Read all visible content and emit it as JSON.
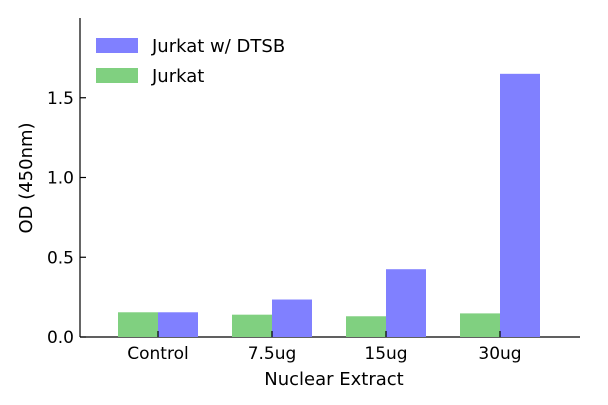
{
  "chart_data": {
    "type": "bar",
    "categories": [
      "Control",
      "7.5ug",
      "15ug",
      "30ug"
    ],
    "series": [
      {
        "name": "Jurkat",
        "color": "#80d080",
        "values": [
          0.155,
          0.14,
          0.13,
          0.148
        ]
      },
      {
        "name": "Jurkat w/ DTSB",
        "color": "#8080ff",
        "values": [
          0.155,
          0.235,
          0.425,
          1.65
        ]
      }
    ],
    "xlabel": "Nuclear Extract",
    "ylabel": "OD (450nm)",
    "ylim": [
      0,
      2.0
    ],
    "yticks": [
      0.0,
      0.5,
      1.0,
      1.5
    ],
    "ytick_labels": [
      "0.0",
      "0.5",
      "1.0",
      "1.5"
    ],
    "grid": false,
    "legend": {
      "placement": "top-left",
      "entries": [
        {
          "label": "Jurkat w/ DTSB",
          "color": "#8080ff"
        },
        {
          "label": "Jurkat",
          "color": "#80d080"
        }
      ]
    }
  }
}
